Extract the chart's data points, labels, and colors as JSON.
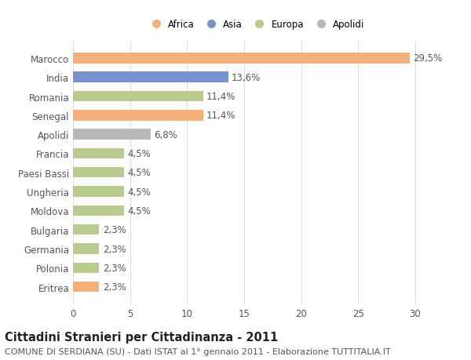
{
  "categories": [
    "Marocco",
    "India",
    "Romania",
    "Senegal",
    "Apolidi",
    "Francia",
    "Paesi Bassi",
    "Ungheria",
    "Moldova",
    "Bulgaria",
    "Germania",
    "Polonia",
    "Eritrea"
  ],
  "values": [
    29.5,
    13.6,
    11.4,
    11.4,
    6.8,
    4.5,
    4.5,
    4.5,
    4.5,
    2.3,
    2.3,
    2.3,
    2.3
  ],
  "labels": [
    "29,5%",
    "13,6%",
    "11,4%",
    "11,4%",
    "6,8%",
    "4,5%",
    "4,5%",
    "4,5%",
    "4,5%",
    "2,3%",
    "2,3%",
    "2,3%",
    "2,3%"
  ],
  "bar_colors": [
    "#f5b07a",
    "#7b93cc",
    "#b8ca8e",
    "#f5b07a",
    "#b8b8b8",
    "#b8ca8e",
    "#b8ca8e",
    "#b8ca8e",
    "#b8ca8e",
    "#b8ca8e",
    "#b8ca8e",
    "#b8ca8e",
    "#f5b07a"
  ],
  "legend": [
    {
      "label": "Africa",
      "color": "#f5b07a"
    },
    {
      "label": "Asia",
      "color": "#7b93cc"
    },
    {
      "label": "Europa",
      "color": "#b8ca8e"
    },
    {
      "label": "Apolidi",
      "color": "#b8b8b8"
    }
  ],
  "xlim": [
    0,
    32
  ],
  "xticks": [
    0,
    5,
    10,
    15,
    20,
    25,
    30
  ],
  "title": "Cittadini Stranieri per Cittadinanza - 2011",
  "subtitle": "COMUNE DI SERDIANA (SU) - Dati ISTAT al 1° gennaio 2011 - Elaborazione TUTTITALIA.IT",
  "background_color": "#ffffff",
  "grid_color": "#dddddd",
  "bar_height": 0.55,
  "label_fontsize": 8.5,
  "tick_fontsize": 8.5,
  "title_fontsize": 10.5,
  "subtitle_fontsize": 8
}
